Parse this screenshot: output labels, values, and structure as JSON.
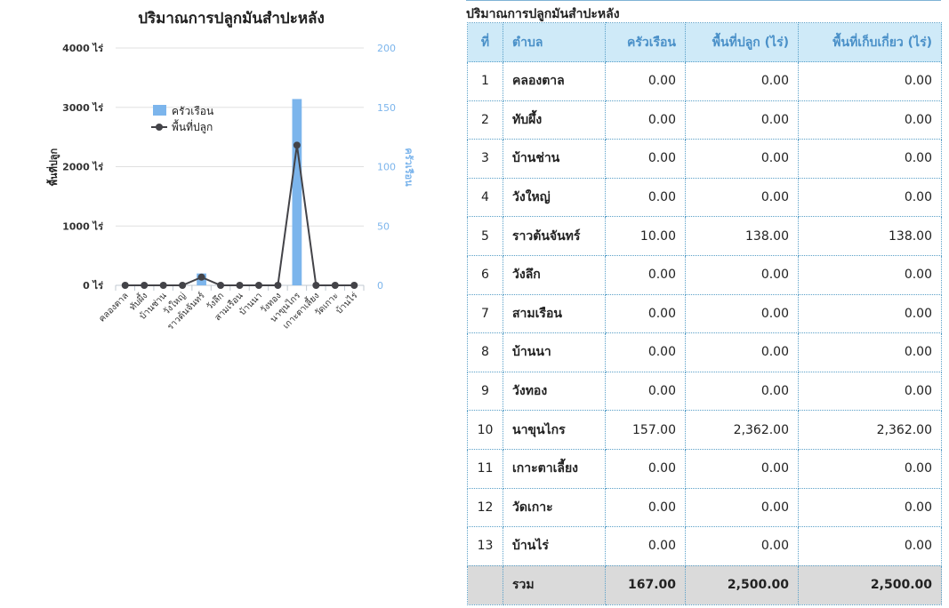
{
  "chart": {
    "title": "ปริมาณการปลูกมันสำปะหลัง",
    "left_axis_title": "พื้นที่ปลูก",
    "right_axis_title": "ครัวเรือน",
    "left_ticks": [
      "0 ไร่",
      "1000 ไร่",
      "2000 ไร่",
      "3000 ไร่",
      "4000 ไร่"
    ],
    "right_ticks": [
      "0",
      "50",
      "100",
      "150",
      "200"
    ]
  },
  "chart_data": {
    "type": "bar",
    "title": "ปริมาณการปลูกมันสำปะหลัง",
    "categories": [
      "คลองตาล",
      "ทับผึ้ง",
      "บ้านช่าน",
      "วังใหญ่",
      "ราวต้นจันทร์",
      "วังลึก",
      "สามเรือน",
      "บ้านนา",
      "วังทอง",
      "นาขุนไกร",
      "เกาะตาเลี้ยง",
      "วัดเกาะ",
      "บ้านไร่"
    ],
    "ylabel": "พื้นที่ปลูก",
    "ylim": [
      0,
      4000
    ],
    "y2label": "ครัวเรือน",
    "y2lim": [
      0,
      200
    ],
    "series": [
      {
        "name": "ครัวเรือน",
        "type": "bar",
        "axis": "right",
        "color": "#7cb5ec",
        "values": [
          0,
          0,
          0,
          0,
          10,
          0,
          0,
          0,
          0,
          157,
          0,
          0,
          0
        ]
      },
      {
        "name": "พื้นที่ปลูก",
        "type": "line",
        "axis": "left",
        "color": "#434348",
        "values": [
          0,
          0,
          0,
          0,
          138,
          0,
          0,
          0,
          0,
          2362,
          0,
          0,
          0
        ]
      }
    ],
    "grid": true,
    "legend": "top-left"
  },
  "table": {
    "caption": "ปริมาณการปลูกมันสำปะหลัง",
    "headers": [
      "ที่",
      "ตำบล",
      "ครัวเรือน",
      "พื้นที่ปลูก (ไร่)",
      "พื้นที่เก็บเกี่ยว (ไร่)"
    ],
    "rows": [
      [
        "1",
        "คลองตาล",
        "0.00",
        "0.00",
        "0.00"
      ],
      [
        "2",
        "ทับผึ้ง",
        "0.00",
        "0.00",
        "0.00"
      ],
      [
        "3",
        "บ้านช่าน",
        "0.00",
        "0.00",
        "0.00"
      ],
      [
        "4",
        "วังใหญ่",
        "0.00",
        "0.00",
        "0.00"
      ],
      [
        "5",
        "ราวต้นจันทร์",
        "10.00",
        "138.00",
        "138.00"
      ],
      [
        "6",
        "วังลึก",
        "0.00",
        "0.00",
        "0.00"
      ],
      [
        "7",
        "สามเรือน",
        "0.00",
        "0.00",
        "0.00"
      ],
      [
        "8",
        "บ้านนา",
        "0.00",
        "0.00",
        "0.00"
      ],
      [
        "9",
        "วังทอง",
        "0.00",
        "0.00",
        "0.00"
      ],
      [
        "10",
        "นาขุนไกร",
        "157.00",
        "2,362.00",
        "2,362.00"
      ],
      [
        "11",
        "เกาะตาเลี้ยง",
        "0.00",
        "0.00",
        "0.00"
      ],
      [
        "12",
        "วัดเกาะ",
        "0.00",
        "0.00",
        "0.00"
      ],
      [
        "13",
        "บ้านไร่",
        "0.00",
        "0.00",
        "0.00"
      ]
    ],
    "total": [
      "",
      "รวม",
      "167.00",
      "2,500.00",
      "2,500.00"
    ]
  }
}
